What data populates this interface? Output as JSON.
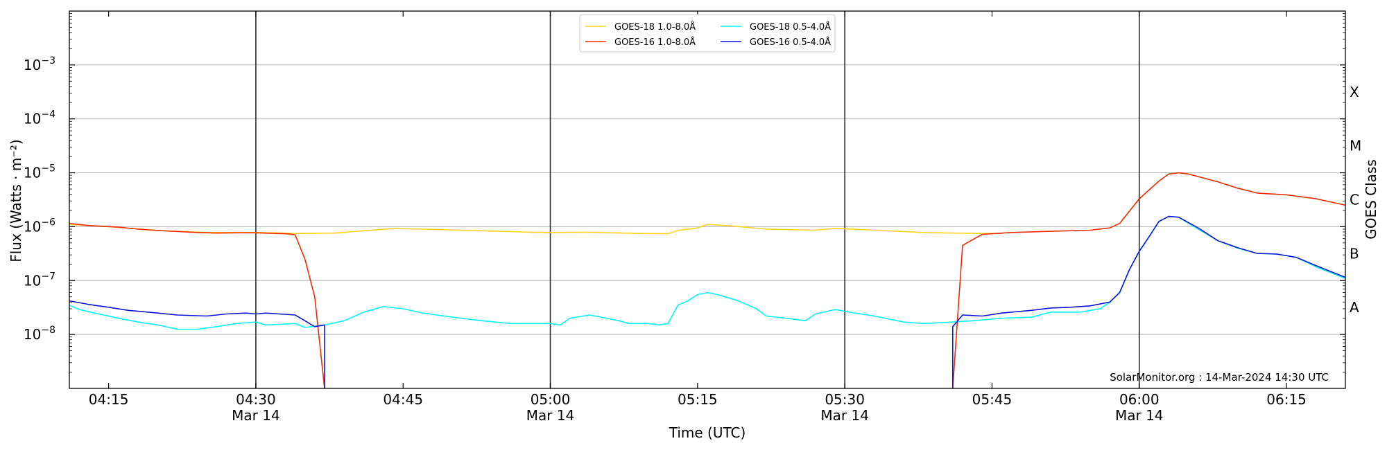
{
  "chart_data": {
    "type": "line",
    "xlabel": "Time (UTC)",
    "ylabel": "Flux (Watts · m⁻²)",
    "y2label": "GOES Class",
    "y_scale": "log",
    "ylim": [
      1e-09,
      0.01
    ],
    "xlim": [
      "04:11",
      "06:21"
    ],
    "x_ticks": [
      {
        "t": "04:15",
        "label": "04:15",
        "sublabel": ""
      },
      {
        "t": "04:30",
        "label": "04:30",
        "sublabel": "Mar 14"
      },
      {
        "t": "04:45",
        "label": "04:45",
        "sublabel": ""
      },
      {
        "t": "05:00",
        "label": "05:00",
        "sublabel": "Mar 14"
      },
      {
        "t": "05:15",
        "label": "05:15",
        "sublabel": ""
      },
      {
        "t": "05:30",
        "label": "05:30",
        "sublabel": "Mar 14"
      },
      {
        "t": "05:45",
        "label": "05:45",
        "sublabel": ""
      },
      {
        "t": "06:00",
        "label": "06:00",
        "sublabel": "Mar 14"
      },
      {
        "t": "06:15",
        "label": "06:15",
        "sublabel": ""
      }
    ],
    "y_ticks": [
      {
        "value": 1e-08,
        "base": "10",
        "exp": "−8"
      },
      {
        "value": 1e-07,
        "base": "10",
        "exp": "−7"
      },
      {
        "value": 1e-06,
        "base": "10",
        "exp": "−6"
      },
      {
        "value": 1e-05,
        "base": "10",
        "exp": "−5"
      },
      {
        "value": 0.0001,
        "base": "10",
        "exp": "−4"
      },
      {
        "value": 0.001,
        "base": "10",
        "exp": "−3"
      }
    ],
    "goes_classes": [
      {
        "label": "A",
        "value": 3.16e-08
      },
      {
        "label": "B",
        "value": 3.16e-07
      },
      {
        "label": "C",
        "value": 3.16e-06
      },
      {
        "label": "M",
        "value": 3.16e-05
      },
      {
        "label": "X",
        "value": 0.000316
      }
    ],
    "vlines": [
      "04:30",
      "05:00",
      "05:30",
      "06:00"
    ],
    "grid": "horizontal",
    "legend_position": "top-center",
    "annotation": "SolarMonitor.org : 14-Mar-2024 14:30 UTC",
    "series": [
      {
        "name": "GOES-18 1.0-8.0Å",
        "color": "#ffd21f",
        "points": [
          [
            "04:11",
            1.1e-06
          ],
          [
            "04:15",
            1e-06
          ],
          [
            "04:20",
            8.5e-07
          ],
          [
            "04:25",
            7.8e-07
          ],
          [
            "04:30",
            7.8e-07
          ],
          [
            "04:34",
            7.5e-07
          ],
          [
            "04:38",
            7.6e-07
          ],
          [
            "04:41",
            8.4e-07
          ],
          [
            "04:44",
            9.2e-07
          ],
          [
            "04:47",
            9e-07
          ],
          [
            "04:52",
            8.5e-07
          ],
          [
            "04:58",
            7.9e-07
          ],
          [
            "05:00",
            7.8e-07
          ],
          [
            "05:04",
            7.9e-07
          ],
          [
            "05:09",
            7.5e-07
          ],
          [
            "05:12",
            7.4e-07
          ],
          [
            "05:13",
            8.5e-07
          ],
          [
            "05:15",
            9.5e-07
          ],
          [
            "05:16",
            1.1e-06
          ],
          [
            "05:18",
            1.05e-06
          ],
          [
            "05:22",
            9e-07
          ],
          [
            "05:27",
            8.6e-07
          ],
          [
            "05:29",
            9.3e-07
          ],
          [
            "05:32",
            8.8e-07
          ],
          [
            "05:38",
            7.8e-07
          ],
          [
            "05:41",
            7.6e-07
          ],
          [
            "05:44",
            7.5e-07
          ],
          [
            "05:46",
            7.5e-07
          ]
        ]
      },
      {
        "name": "GOES-16 1.0-8.0Å",
        "color": "#ee2a00",
        "points": [
          [
            "04:11",
            1.15e-06
          ],
          [
            "04:13",
            1.05e-06
          ],
          [
            "04:16",
            9.8e-07
          ],
          [
            "04:18",
            9e-07
          ],
          [
            "04:21",
            8.3e-07
          ],
          [
            "04:24",
            7.8e-07
          ],
          [
            "04:26",
            7.6e-07
          ],
          [
            "04:28",
            7.7e-07
          ],
          [
            "04:30",
            7.7e-07
          ],
          [
            "04:33",
            7.4e-07
          ],
          [
            "04:34",
            7.1e-07
          ],
          [
            "04:35",
            2.5e-07
          ],
          [
            "04:36",
            5e-08
          ],
          [
            "04:37",
            1e-09
          ],
          null,
          [
            "05:41",
            1e-09
          ],
          [
            "05:42",
            4.5e-07
          ],
          [
            "05:44",
            7.2e-07
          ],
          [
            "05:47",
            7.8e-07
          ],
          [
            "05:51",
            8.2e-07
          ],
          [
            "05:55",
            8.6e-07
          ],
          [
            "05:57",
            9.5e-07
          ],
          [
            "05:58",
            1.15e-06
          ],
          [
            "06:00",
            3.3e-06
          ],
          [
            "06:02",
            7e-06
          ],
          [
            "06:03",
            9.5e-06
          ],
          [
            "06:04",
            1e-05
          ],
          [
            "06:05",
            9.5e-06
          ],
          [
            "06:08",
            6.8e-06
          ],
          [
            "06:10",
            5.2e-06
          ],
          [
            "06:12",
            4.2e-06
          ],
          [
            "06:15",
            3.9e-06
          ],
          [
            "06:18",
            3.3e-06
          ],
          [
            "06:21",
            2.5e-06
          ]
        ]
      },
      {
        "name": "GOES-18 0.5-4.0Å",
        "color": "#00f5f5",
        "points": [
          [
            "04:11",
            3.5e-08
          ],
          [
            "04:12",
            2.9e-08
          ],
          [
            "04:14",
            2.4e-08
          ],
          [
            "04:16",
            2e-08
          ],
          [
            "04:18",
            1.7e-08
          ],
          [
            "04:20",
            1.5e-08
          ],
          [
            "04:22",
            1.25e-08
          ],
          [
            "04:24",
            1.25e-08
          ],
          [
            "04:26",
            1.4e-08
          ],
          [
            "04:28",
            1.6e-08
          ],
          [
            "04:30",
            1.7e-08
          ],
          [
            "04:31",
            1.5e-08
          ],
          [
            "04:34",
            1.6e-08
          ],
          [
            "04:35",
            1.35e-08
          ],
          [
            "04:37",
            1.5e-08
          ],
          [
            "04:39",
            1.8e-08
          ],
          [
            "04:41",
            2.6e-08
          ],
          [
            "04:43",
            3.3e-08
          ],
          [
            "04:45",
            3e-08
          ],
          [
            "04:47",
            2.5e-08
          ],
          [
            "04:50",
            2.1e-08
          ],
          [
            "04:53",
            1.8e-08
          ],
          [
            "04:56",
            1.6e-08
          ],
          [
            "05:00",
            1.6e-08
          ],
          [
            "05:01",
            1.5e-08
          ],
          [
            "05:02",
            2e-08
          ],
          [
            "05:04",
            2.3e-08
          ],
          [
            "05:07",
            1.8e-08
          ],
          [
            "05:08",
            1.6e-08
          ],
          [
            "05:10",
            1.6e-08
          ],
          [
            "05:11",
            1.5e-08
          ],
          [
            "05:12",
            1.6e-08
          ],
          [
            "05:13",
            3.5e-08
          ],
          [
            "05:14",
            4.2e-08
          ],
          [
            "05:15",
            5.5e-08
          ],
          [
            "05:16",
            6e-08
          ],
          [
            "05:17",
            5.5e-08
          ],
          [
            "05:19",
            4.3e-08
          ],
          [
            "05:21",
            3e-08
          ],
          [
            "05:22",
            2.2e-08
          ],
          [
            "05:24",
            2e-08
          ],
          [
            "05:26",
            1.8e-08
          ],
          [
            "05:27",
            2.4e-08
          ],
          [
            "05:29",
            2.9e-08
          ],
          [
            "05:31",
            2.5e-08
          ],
          [
            "05:33",
            2.2e-08
          ],
          [
            "05:36",
            1.7e-08
          ],
          [
            "05:38",
            1.6e-08
          ],
          [
            "05:41",
            1.7e-08
          ],
          [
            "05:43",
            1.8e-08
          ],
          [
            "05:46",
            2e-08
          ],
          [
            "05:49",
            2.1e-08
          ],
          [
            "05:51",
            2.6e-08
          ],
          [
            "05:54",
            2.6e-08
          ],
          [
            "05:56",
            3e-08
          ],
          [
            "05:57",
            4e-08
          ],
          [
            "05:58",
            6e-08
          ],
          [
            "05:59",
            1.6e-07
          ],
          [
            "06:00",
            3.5e-07
          ],
          [
            "06:01",
            6.5e-07
          ],
          [
            "06:02",
            1.25e-06
          ],
          [
            "06:03",
            1.55e-06
          ],
          [
            "06:04",
            1.5e-06
          ],
          [
            "06:06",
            9e-07
          ],
          [
            "06:08",
            5.5e-07
          ],
          [
            "06:10",
            4e-07
          ],
          [
            "06:12",
            3.2e-07
          ],
          [
            "06:14",
            3.1e-07
          ],
          [
            "06:16",
            2.7e-07
          ],
          [
            "06:18",
            1.8e-07
          ],
          [
            "06:21",
            1.1e-07
          ]
        ]
      },
      {
        "name": "GOES-16 0.5-4.0Å",
        "color": "#0a14d8",
        "points": [
          [
            "04:11",
            4.2e-08
          ],
          [
            "04:13",
            3.6e-08
          ],
          [
            "04:15",
            3.2e-08
          ],
          [
            "04:17",
            2.8e-08
          ],
          [
            "04:18",
            2.7e-08
          ],
          [
            "04:20",
            2.5e-08
          ],
          [
            "04:22",
            2.3e-08
          ],
          [
            "04:25",
            2.2e-08
          ],
          [
            "04:27",
            2.4e-08
          ],
          [
            "04:29",
            2.5e-08
          ],
          [
            "04:30",
            2.4e-08
          ],
          [
            "04:31",
            2.5e-08
          ],
          [
            "04:34",
            2.3e-08
          ],
          [
            "04:35",
            1.8e-08
          ],
          [
            "04:36",
            1.4e-08
          ],
          [
            "04:37",
            1.5e-08
          ],
          [
            "04:37",
            1e-09
          ],
          null,
          [
            "05:41",
            1e-09
          ],
          [
            "05:41",
            1.4e-08
          ],
          [
            "05:42",
            2.3e-08
          ],
          [
            "05:44",
            2.2e-08
          ],
          [
            "05:46",
            2.5e-08
          ],
          [
            "05:49",
            2.8e-08
          ],
          [
            "05:51",
            3.1e-08
          ],
          [
            "05:53",
            3.2e-08
          ],
          [
            "05:55",
            3.4e-08
          ],
          [
            "05:57",
            4e-08
          ],
          [
            "05:58",
            6e-08
          ],
          [
            "05:59",
            1.6e-07
          ],
          [
            "06:00",
            3.5e-07
          ],
          [
            "06:01",
            6.5e-07
          ],
          [
            "06:02",
            1.25e-06
          ],
          [
            "06:03",
            1.55e-06
          ],
          [
            "06:04",
            1.5e-06
          ],
          [
            "06:06",
            9.5e-07
          ],
          [
            "06:08",
            5.5e-07
          ],
          [
            "06:10",
            4.1e-07
          ],
          [
            "06:12",
            3.2e-07
          ],
          [
            "06:14",
            3.1e-07
          ],
          [
            "06:16",
            2.7e-07
          ],
          [
            "06:18",
            1.9e-07
          ],
          [
            "06:21",
            1.15e-07
          ]
        ]
      }
    ]
  }
}
